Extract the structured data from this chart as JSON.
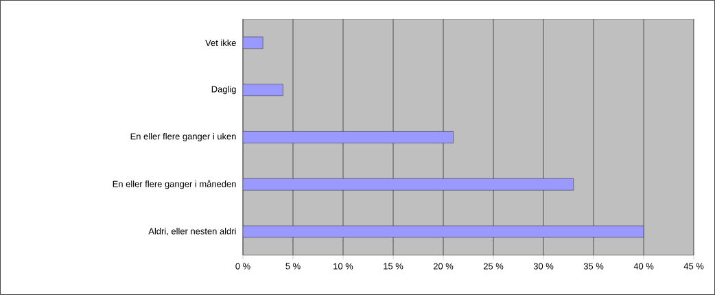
{
  "chart_data": {
    "type": "bar",
    "orientation": "horizontal",
    "categories": [
      "Vet ikke",
      "Daglig",
      "En eller flere ganger i uken",
      "En eller flere ganger i måneden",
      "Aldri, eller nesten aldri"
    ],
    "values": [
      2,
      4,
      21,
      33,
      40
    ],
    "color": "#9999ff",
    "xlim": [
      0,
      45
    ],
    "xticks": [
      {
        "value": 0,
        "label": "0 %"
      },
      {
        "value": 5,
        "label": "5 %"
      },
      {
        "value": 10,
        "label": "10 %"
      },
      {
        "value": 15,
        "label": "15 %"
      },
      {
        "value": 20,
        "label": "20 %"
      },
      {
        "value": 25,
        "label": "25 %"
      },
      {
        "value": 30,
        "label": "30 %"
      },
      {
        "value": 35,
        "label": "35 %"
      },
      {
        "value": 40,
        "label": "40 %"
      },
      {
        "value": 45,
        "label": "45 %"
      }
    ],
    "grid": "x"
  }
}
